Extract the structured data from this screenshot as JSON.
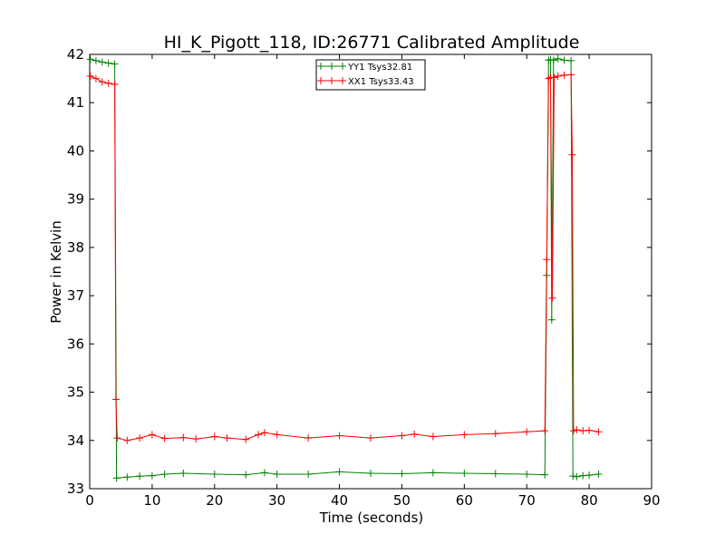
{
  "chart_data": {
    "type": "line",
    "title": "HI_K_Pigott_118, ID:26771 Calibrated Amplitude",
    "xlabel": "Time (seconds)",
    "ylabel": "Power in Kelvin",
    "xlim": [
      0,
      90
    ],
    "ylim": [
      33,
      42
    ],
    "xticks": [
      "0",
      "10",
      "20",
      "30",
      "40",
      "50",
      "60",
      "70",
      "80",
      "90"
    ],
    "yticks": [
      "33",
      "34",
      "35",
      "36",
      "37",
      "38",
      "39",
      "40",
      "41",
      "42"
    ],
    "grid": false,
    "legend_position": "top-center",
    "marker": "+",
    "series": [
      {
        "name": "YY1 Tsys32.81",
        "color": "#008000",
        "points": [
          [
            0.1,
            41.9
          ],
          [
            1,
            41.87
          ],
          [
            2,
            41.84
          ],
          [
            3,
            41.82
          ],
          [
            4.0,
            41.8
          ],
          [
            4.3,
            33.22
          ],
          [
            6,
            33.24
          ],
          [
            8,
            33.26
          ],
          [
            10,
            33.27
          ],
          [
            12,
            33.3
          ],
          [
            15,
            33.32
          ],
          [
            20,
            33.3
          ],
          [
            25,
            33.29
          ],
          [
            28,
            33.33
          ],
          [
            30,
            33.3
          ],
          [
            35,
            33.3
          ],
          [
            40,
            33.35
          ],
          [
            45,
            33.32
          ],
          [
            50,
            33.31
          ],
          [
            55,
            33.33
          ],
          [
            60,
            33.32
          ],
          [
            65,
            33.31
          ],
          [
            70,
            33.3
          ],
          [
            72.9,
            33.29
          ],
          [
            73.2,
            37.42
          ],
          [
            73.5,
            41.88
          ],
          [
            73.8,
            41.89
          ],
          [
            74.0,
            36.5
          ],
          [
            74.3,
            41.88
          ],
          [
            75,
            41.91
          ],
          [
            76,
            41.88
          ],
          [
            77.1,
            41.87
          ],
          [
            77.4,
            33.26
          ],
          [
            78,
            33.25
          ],
          [
            79,
            33.27
          ],
          [
            80,
            33.28
          ],
          [
            81.5,
            33.3
          ]
        ]
      },
      {
        "name": "XX1 Tsys33.43",
        "color": "#ff0000",
        "points": [
          [
            0.1,
            41.55
          ],
          [
            1,
            41.5
          ],
          [
            2,
            41.43
          ],
          [
            3,
            41.4
          ],
          [
            4.0,
            41.38
          ],
          [
            4.2,
            34.85
          ],
          [
            4.4,
            34.05
          ],
          [
            6,
            34.0
          ],
          [
            8,
            34.05
          ],
          [
            10,
            34.12
          ],
          [
            12,
            34.04
          ],
          [
            15,
            34.06
          ],
          [
            17,
            34.03
          ],
          [
            20,
            34.08
          ],
          [
            22,
            34.05
          ],
          [
            25,
            34.02
          ],
          [
            27,
            34.12
          ],
          [
            28,
            34.16
          ],
          [
            30,
            34.12
          ],
          [
            35,
            34.05
          ],
          [
            40,
            34.1
          ],
          [
            45,
            34.05
          ],
          [
            50,
            34.1
          ],
          [
            52,
            34.13
          ],
          [
            55,
            34.08
          ],
          [
            60,
            34.12
          ],
          [
            65,
            34.14
          ],
          [
            70,
            34.18
          ],
          [
            72.9,
            34.2
          ],
          [
            73.2,
            37.75
          ],
          [
            73.5,
            41.5
          ],
          [
            73.8,
            41.52
          ],
          [
            74.1,
            36.95
          ],
          [
            74.4,
            41.52
          ],
          [
            75,
            41.55
          ],
          [
            76,
            41.57
          ],
          [
            77.1,
            41.58
          ],
          [
            77.3,
            39.92
          ],
          [
            77.5,
            34.2
          ],
          [
            78,
            34.22
          ],
          [
            79,
            34.2
          ],
          [
            80,
            34.21
          ],
          [
            81.5,
            34.18
          ]
        ]
      }
    ]
  }
}
